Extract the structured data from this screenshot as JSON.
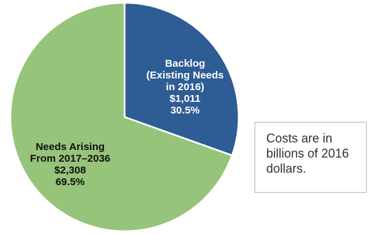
{
  "chart_data": {
    "type": "pie",
    "title": "",
    "start_angle_deg": 0,
    "direction": "clockwise",
    "slices": [
      {
        "label_lines": [
          "Backlog",
          "(Existing Needs",
          "in 2016)"
        ],
        "value_label": "$1,011",
        "percent_label": "30.5%",
        "value": 1011,
        "percent": 30.5,
        "color": "#2e5c94",
        "text_color": "#ffffff"
      },
      {
        "label_lines": [
          "Needs Arising",
          "From 2017–2036"
        ],
        "value_label": "$2,308",
        "percent_label": "69.5%",
        "value": 2308,
        "percent": 69.5,
        "color": "#96c47a",
        "text_color": "#111111"
      }
    ],
    "legend": "none"
  },
  "note": {
    "lines": [
      "Costs are in",
      "billions of 2016",
      "dollars."
    ]
  }
}
